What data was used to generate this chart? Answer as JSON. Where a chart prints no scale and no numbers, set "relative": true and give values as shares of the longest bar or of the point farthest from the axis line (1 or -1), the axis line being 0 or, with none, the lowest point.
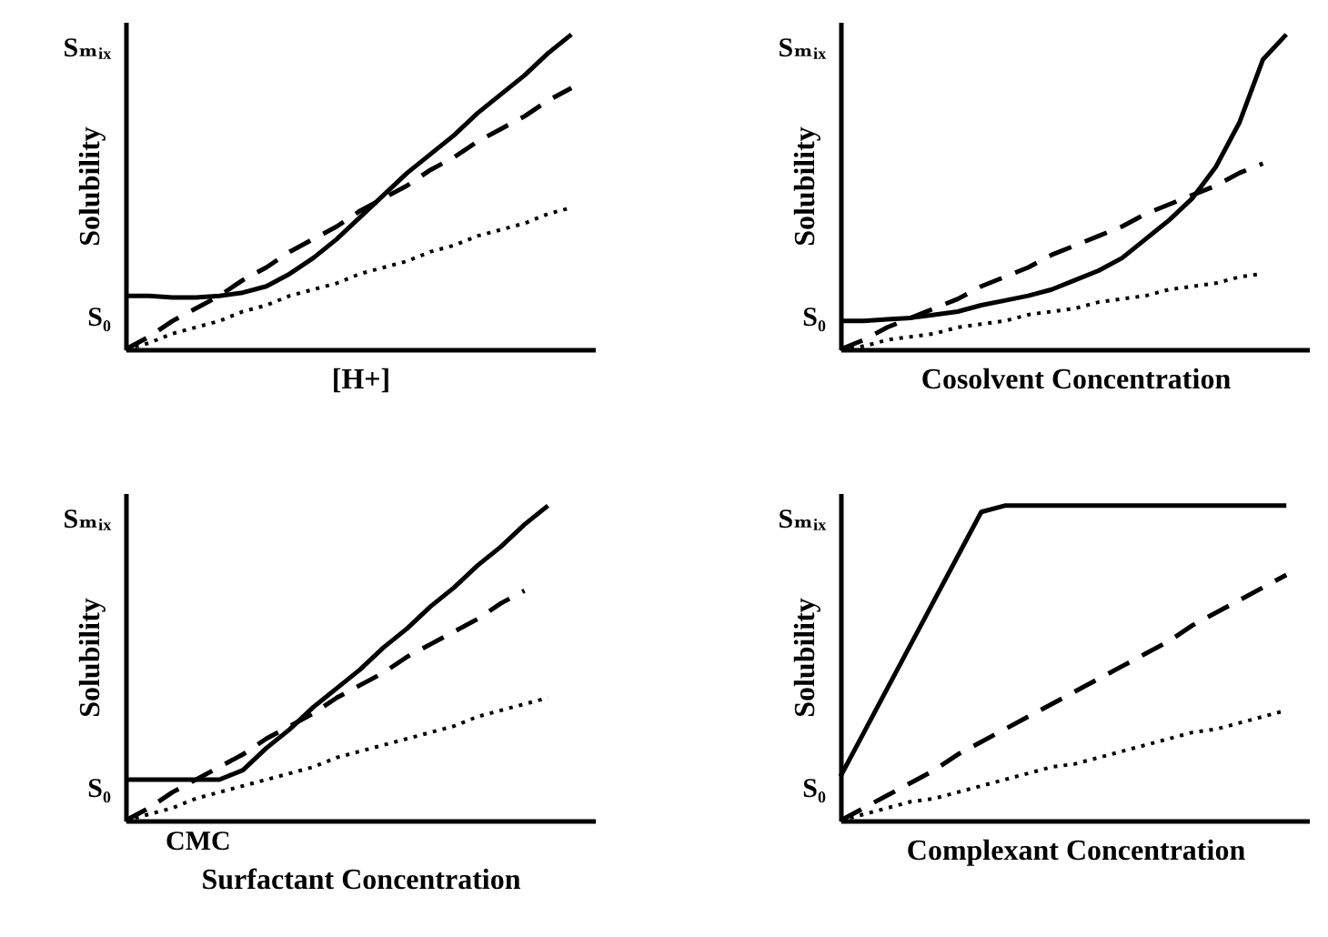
{
  "chart_data": [
    {
      "type": "line",
      "relative": true,
      "xlabel": "[H+]",
      "ylabel": "Solubility",
      "tick_labels": false,
      "categories": [
        null,
        null,
        null,
        null,
        null,
        null,
        null,
        null,
        null,
        null,
        null,
        null,
        null,
        null,
        null,
        null,
        null,
        null,
        null,
        null,
        null
      ],
      "annotations": [
        "Sₘᵢₓ",
        "S₀"
      ],
      "series": [
        {
          "color": "#000000",
          "line_style": "solid",
          "values": [
            0.17,
            0.17,
            0.165,
            0.165,
            0.17,
            0.18,
            0.2,
            0.24,
            0.29,
            0.35,
            0.42,
            0.49,
            0.56,
            0.62,
            0.68,
            0.75,
            0.81,
            0.87,
            0.94,
            1.0,
            null
          ]
        },
        {
          "color": "#000000",
          "line_style": "dashed",
          "values": [
            0,
            0.04,
            0.09,
            0.13,
            0.17,
            0.22,
            0.26,
            0.31,
            0.35,
            0.39,
            0.44,
            0.48,
            0.52,
            0.57,
            0.61,
            0.66,
            0.7,
            0.74,
            0.79,
            0.83,
            null
          ]
        },
        {
          "color": "#000000",
          "line_style": "dotted",
          "values": [
            0,
            0.02,
            0.05,
            0.07,
            0.09,
            0.12,
            0.14,
            0.17,
            0.19,
            0.21,
            0.24,
            0.26,
            0.28,
            0.31,
            0.33,
            0.36,
            0.38,
            0.4,
            0.43,
            0.45,
            null
          ]
        }
      ]
    },
    {
      "type": "line",
      "relative": true,
      "xlabel": "Cosolvent Concentration",
      "ylabel": "Solubility",
      "tick_labels": false,
      "categories": [
        null,
        null,
        null,
        null,
        null,
        null,
        null,
        null,
        null,
        null,
        null,
        null,
        null,
        null,
        null,
        null,
        null,
        null,
        null,
        null,
        null
      ],
      "annotations": [
        "Sₘᵢₓ",
        "S₀"
      ],
      "series": [
        {
          "color": "#000000",
          "line_style": "solid",
          "values": [
            0.09,
            0.09,
            0.095,
            0.1,
            0.11,
            0.12,
            0.14,
            0.155,
            0.17,
            0.19,
            0.22,
            0.25,
            0.29,
            0.35,
            0.41,
            0.48,
            0.58,
            0.72,
            0.92,
            1.0,
            null
          ]
        },
        {
          "color": "#000000",
          "line_style": "dashed",
          "values": [
            0,
            0.03,
            0.07,
            0.1,
            0.13,
            0.16,
            0.2,
            0.23,
            0.26,
            0.3,
            0.33,
            0.36,
            0.39,
            0.43,
            0.46,
            0.49,
            0.52,
            0.56,
            0.59,
            null,
            null
          ]
        },
        {
          "color": "#000000",
          "line_style": "dotted",
          "values": [
            0,
            0.01,
            0.03,
            0.04,
            0.05,
            0.07,
            0.08,
            0.09,
            0.11,
            0.12,
            0.13,
            0.15,
            0.16,
            0.17,
            0.19,
            0.2,
            0.21,
            0.23,
            0.24,
            null,
            null
          ]
        }
      ]
    },
    {
      "type": "line",
      "relative": true,
      "xlabel": "Surfactant Concentration",
      "ylabel": "Solubility",
      "tick_labels": false,
      "categories": [
        null,
        null,
        null,
        null,
        null,
        null,
        null,
        null,
        null,
        null,
        null,
        null,
        null,
        null,
        null,
        null,
        null,
        null,
        null,
        null,
        null
      ],
      "annotations": [
        "Sₘᵢₓ",
        "S₀",
        "CMC"
      ],
      "series": [
        {
          "color": "#000000",
          "line_style": "solid",
          "values": [
            0.13,
            0.13,
            0.13,
            0.13,
            0.13,
            0.16,
            0.23,
            0.29,
            0.36,
            0.42,
            0.48,
            0.55,
            0.61,
            0.68,
            0.74,
            0.81,
            0.87,
            0.94,
            1.0,
            null,
            null
          ]
        },
        {
          "color": "#000000",
          "line_style": "dashed",
          "values": [
            0,
            0.04,
            0.09,
            0.13,
            0.17,
            0.21,
            0.26,
            0.3,
            0.34,
            0.39,
            0.43,
            0.47,
            0.52,
            0.56,
            0.6,
            0.64,
            0.69,
            0.73,
            null,
            null,
            null
          ]
        },
        {
          "color": "#000000",
          "line_style": "dotted",
          "values": [
            0,
            0.02,
            0.04,
            0.07,
            0.09,
            0.11,
            0.13,
            0.15,
            0.17,
            0.2,
            0.22,
            0.24,
            0.26,
            0.28,
            0.3,
            0.33,
            0.35,
            0.37,
            0.39,
            null,
            null
          ]
        }
      ]
    },
    {
      "type": "line",
      "relative": true,
      "xlabel": "Complexant Concentration",
      "ylabel": "Solubility",
      "tick_labels": false,
      "categories": [
        null,
        null,
        null,
        null,
        null,
        null,
        null,
        null,
        null,
        null,
        null,
        null,
        null,
        null,
        null,
        null,
        null,
        null,
        null,
        null,
        null
      ],
      "annotations": [
        "Sₘᵢₓ",
        "S₀"
      ],
      "series": [
        {
          "color": "#000000",
          "line_style": "solid",
          "values": [
            0.14,
            0.28,
            0.42,
            0.56,
            0.7,
            0.84,
            0.98,
            1.0,
            1.0,
            1.0,
            1.0,
            1.0,
            1.0,
            1.0,
            1.0,
            1.0,
            1.0,
            1.0,
            1.0,
            1.0,
            null
          ]
        },
        {
          "color": "#000000",
          "line_style": "dashed",
          "values": [
            0,
            0.04,
            0.08,
            0.12,
            0.16,
            0.21,
            0.25,
            0.29,
            0.33,
            0.37,
            0.41,
            0.45,
            0.49,
            0.53,
            0.57,
            0.62,
            0.66,
            0.7,
            0.74,
            0.78,
            null
          ]
        },
        {
          "color": "#000000",
          "line_style": "dotted",
          "values": [
            0,
            0.02,
            0.04,
            0.06,
            0.07,
            0.09,
            0.11,
            0.13,
            0.15,
            0.17,
            0.18,
            0.2,
            0.22,
            0.24,
            0.26,
            0.28,
            0.29,
            0.31,
            0.33,
            0.35,
            null
          ]
        }
      ]
    }
  ]
}
